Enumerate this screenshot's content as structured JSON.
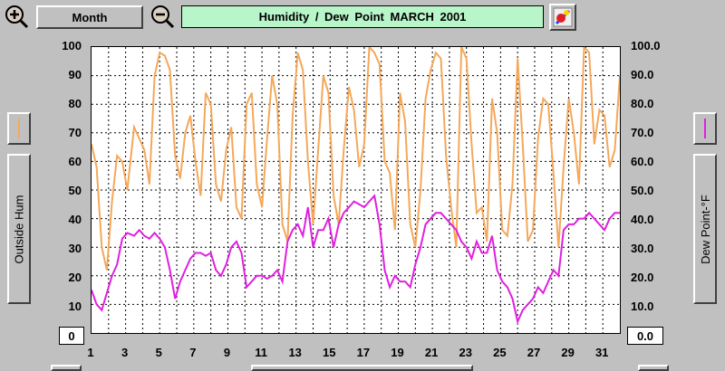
{
  "toolbar": {
    "zoom_in_icon": "plus-magnifier",
    "zoom_out_icon": "minus-magnifier",
    "period_label": "Month",
    "clear_icon": "eraser-brush"
  },
  "title": "Humidity  /  Dew Point  MARCH 2001",
  "left_axis": {
    "name": "Outside Hum",
    "ticks": [
      "100",
      "90",
      "80",
      "70",
      "60",
      "50",
      "40",
      "30",
      "20",
      "10",
      "0"
    ],
    "swatch_color": "#f4a85a"
  },
  "right_axis": {
    "name": "Dew Point-°F",
    "ticks": [
      "100.0",
      "90.0",
      "80.0",
      "70.0",
      "60.0",
      "50.0",
      "40.0",
      "30.0",
      "20.0",
      "10.0",
      "0.0"
    ],
    "swatch_color": "#e020e0"
  },
  "chart_data": {
    "type": "line",
    "title": "Humidity  /  Dew Point  MARCH 2001",
    "xlabel": "",
    "ylabel": "Outside Hum",
    "y2label": "Dew Point-°F",
    "x_ticks": [
      "1",
      "3",
      "5",
      "7",
      "9",
      "11",
      "13",
      "15",
      "17",
      "19",
      "21",
      "23",
      "25",
      "27",
      "29",
      "31"
    ],
    "xlim": [
      1,
      32
    ],
    "ylim": [
      0,
      100
    ],
    "y2lim": [
      0,
      100
    ],
    "grid": true,
    "series": [
      {
        "name": "Outside Hum",
        "color": "#f4a85a",
        "x": [
          1,
          1.3,
          1.6,
          1.9,
          2.2,
          2.5,
          2.8,
          3.1,
          3.5,
          3.8,
          4.1,
          4.4,
          4.7,
          5,
          5.3,
          5.6,
          5.9,
          6.2,
          6.5,
          6.8,
          7.1,
          7.4,
          7.7,
          8,
          8.3,
          8.6,
          8.9,
          9.2,
          9.5,
          9.8,
          10.1,
          10.4,
          10.7,
          11,
          11.3,
          11.6,
          11.9,
          12.2,
          12.5,
          12.8,
          13.1,
          13.4,
          13.7,
          14,
          14.3,
          14.6,
          14.9,
          15.2,
          15.5,
          15.8,
          16.1,
          16.4,
          16.7,
          17,
          17.3,
          17.6,
          17.9,
          18.2,
          18.5,
          18.8,
          19.1,
          19.4,
          19.7,
          20,
          20.3,
          20.6,
          20.9,
          21.2,
          21.5,
          21.8,
          22.1,
          22.4,
          22.7,
          23,
          23.3,
          23.6,
          23.9,
          24.2,
          24.5,
          24.8,
          25.1,
          25.4,
          25.7,
          26,
          26.3,
          26.6,
          26.9,
          27.2,
          27.5,
          27.8,
          28.1,
          28.4,
          28.7,
          29,
          29.3,
          29.6,
          29.9,
          30.2,
          30.5,
          30.8,
          31.1,
          31.4,
          31.7,
          32
        ],
        "values": [
          66,
          58,
          30,
          22,
          46,
          62,
          60,
          50,
          72,
          68,
          64,
          52,
          90,
          98,
          97,
          92,
          62,
          54,
          70,
          76,
          60,
          48,
          84,
          80,
          52,
          46,
          64,
          72,
          44,
          40,
          80,
          84,
          52,
          44,
          68,
          90,
          80,
          38,
          32,
          76,
          98,
          92,
          60,
          38,
          64,
          90,
          84,
          48,
          38,
          64,
          86,
          78,
          58,
          66,
          100,
          98,
          94,
          60,
          56,
          36,
          84,
          74,
          38,
          30,
          50,
          82,
          92,
          98,
          96,
          62,
          44,
          30,
          100,
          96,
          66,
          42,
          44,
          32,
          82,
          70,
          36,
          34,
          52,
          96,
          66,
          32,
          36,
          68,
          82,
          80,
          56,
          30,
          58,
          82,
          70,
          52,
          100,
          98,
          66,
          78,
          76,
          58,
          64,
          90
        ]
      },
      {
        "name": "Dew Point-°F",
        "color": "#e020e0",
        "x": [
          1,
          1.3,
          1.6,
          1.9,
          2.2,
          2.5,
          2.8,
          3.1,
          3.5,
          3.8,
          4.1,
          4.4,
          4.7,
          5,
          5.3,
          5.6,
          5.9,
          6.2,
          6.5,
          6.8,
          7.1,
          7.4,
          7.7,
          8,
          8.3,
          8.6,
          8.9,
          9.2,
          9.5,
          9.8,
          10.1,
          10.4,
          10.7,
          11,
          11.3,
          11.6,
          11.9,
          12.2,
          12.5,
          12.8,
          13.1,
          13.4,
          13.7,
          14,
          14.3,
          14.6,
          14.9,
          15.2,
          15.5,
          15.8,
          16.1,
          16.4,
          16.7,
          17,
          17.3,
          17.6,
          17.9,
          18.2,
          18.5,
          18.8,
          19.1,
          19.4,
          19.7,
          20,
          20.3,
          20.6,
          20.9,
          21.2,
          21.5,
          21.8,
          22.1,
          22.4,
          22.7,
          23,
          23.3,
          23.6,
          23.9,
          24.2,
          24.5,
          24.8,
          25.1,
          25.4,
          25.7,
          26,
          26.3,
          26.6,
          26.9,
          27.2,
          27.5,
          27.8,
          28.1,
          28.4,
          28.7,
          29,
          29.3,
          29.6,
          29.9,
          30.2,
          30.5,
          30.8,
          31.1,
          31.4,
          31.7,
          32
        ],
        "values": [
          15,
          10,
          8,
          14,
          20,
          24,
          33,
          35,
          34,
          36,
          34,
          33,
          35,
          33,
          30,
          22,
          12,
          18,
          22,
          26,
          28,
          28,
          27,
          28,
          22,
          20,
          24,
          30,
          32,
          28,
          16,
          18,
          20,
          20,
          19,
          20,
          22,
          18,
          32,
          36,
          38,
          34,
          44,
          30,
          36,
          36,
          40,
          30,
          38,
          42,
          44,
          46,
          45,
          44,
          46,
          48,
          38,
          22,
          16,
          20,
          18,
          18,
          16,
          24,
          30,
          38,
          40,
          42,
          42,
          40,
          38,
          36,
          32,
          30,
          26,
          32,
          28,
          28,
          34,
          22,
          18,
          16,
          12,
          4,
          8,
          10,
          12,
          16,
          14,
          18,
          22,
          20,
          36,
          38,
          38,
          40,
          40,
          42,
          40,
          38,
          36,
          40,
          42,
          42
        ]
      }
    ]
  }
}
